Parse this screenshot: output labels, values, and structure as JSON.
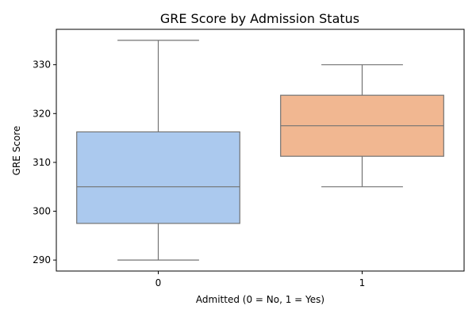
{
  "chart_data": {
    "type": "box",
    "title": "GRE Score by Admission Status",
    "xlabel": "Admitted (0 = No, 1 = Yes)",
    "ylabel": "GRE Score",
    "ylim": [
      287.75,
      337.25
    ],
    "yticks": [
      290,
      300,
      310,
      320,
      330
    ],
    "grid": false,
    "categories": [
      "0",
      "1"
    ],
    "boxes": [
      {
        "category": "0",
        "whisker_low": 290,
        "q1": 297.5,
        "median": 305,
        "q3": 316.25,
        "whisker_high": 335,
        "color": "#abc9ee"
      },
      {
        "category": "1",
        "whisker_low": 305,
        "q1": 311.25,
        "median": 317.5,
        "q3": 323.75,
        "whisker_high": 330,
        "color": "#f1b791"
      }
    ]
  }
}
